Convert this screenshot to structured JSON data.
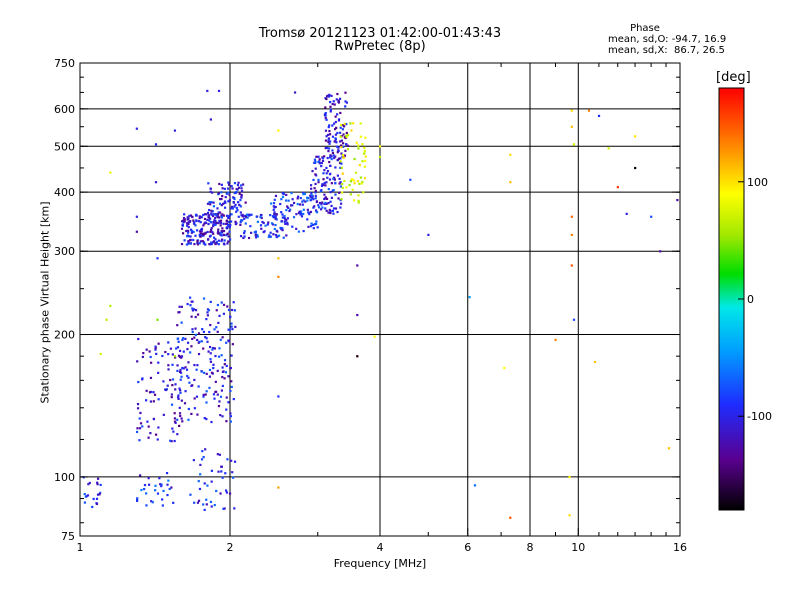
{
  "title": {
    "line1": "Tromsø 20121123 01:42:00-01:43:43",
    "line2": "RwPretec (8p)"
  },
  "stats": {
    "label": "Phase",
    "line_o": "mean, sd,O: -94.7, 16.9",
    "line_x": "mean, sd,X:  86.7, 26.5"
  },
  "colorbar": {
    "label": "[deg]",
    "range": [
      -180,
      180
    ],
    "ticks": [
      100,
      0,
      -100
    ]
  },
  "chart_data": {
    "type": "scatter",
    "title": "Tromsø 20121123 01:42:00-01:43:43",
    "subtitle": "RwPretec (8p)",
    "xlabel": "Frequency [MHz]",
    "ylabel": "Stationary phase Virtual Height [km]",
    "xscale": "log",
    "yscale": "log",
    "xlim": [
      1,
      16
    ],
    "ylim": [
      75,
      750
    ],
    "xticks": [
      1,
      2,
      4,
      6,
      8,
      10,
      16
    ],
    "yticks": [
      75,
      100,
      200,
      300,
      400,
      500,
      600,
      750
    ],
    "grid_x": [
      2,
      4,
      6,
      8,
      10
    ],
    "grid_y": [
      100,
      200,
      300,
      400,
      500,
      600
    ],
    "minor_x": [
      3,
      5,
      7,
      9,
      11,
      12,
      13,
      14,
      15
    ],
    "clusters": [
      {
        "fx": [
          1.0,
          1.1
        ],
        "hy": [
          85,
          102
        ],
        "phase": -105,
        "n": 20
      },
      {
        "fx": [
          1.3,
          1.55
        ],
        "hy": [
          85,
          102
        ],
        "phase": -100,
        "n": 30
      },
      {
        "fx": [
          1.65,
          2.05
        ],
        "hy": [
          85,
          115
        ],
        "phase": -105,
        "n": 45
      },
      {
        "fx": [
          1.3,
          1.6
        ],
        "hy": [
          118,
          200
        ],
        "phase": -115,
        "n": 90
      },
      {
        "fx": [
          1.55,
          2.05
        ],
        "hy": [
          130,
          240
        ],
        "phase": -110,
        "n": 200
      },
      {
        "fx": [
          1.6,
          2.0
        ],
        "hy": [
          310,
          360
        ],
        "phase": -115,
        "n": 200
      },
      {
        "fx": [
          1.8,
          2.15
        ],
        "hy": [
          340,
          420
        ],
        "phase": -110,
        "n": 120
      },
      {
        "fx": [
          2.1,
          2.6
        ],
        "hy": [
          320,
          360
        ],
        "phase": -105,
        "n": 80
      },
      {
        "fx": [
          2.4,
          3.0
        ],
        "hy": [
          330,
          400
        ],
        "phase": -100,
        "n": 100
      },
      {
        "fx": [
          2.9,
          3.35
        ],
        "hy": [
          360,
          480
        ],
        "phase": -110,
        "n": 120
      },
      {
        "fx": [
          3.1,
          3.45
        ],
        "hy": [
          470,
          650
        ],
        "phase": -120,
        "n": 100
      },
      {
        "fx": [
          3.3,
          3.75
        ],
        "hy": [
          380,
          560
        ],
        "phase": 75,
        "n": 60
      }
    ],
    "points": [
      [
        1.15,
        440,
        80
      ],
      [
        1.15,
        230,
        60
      ],
      [
        1.13,
        215,
        60
      ],
      [
        1.1,
        182,
        70
      ],
      [
        1.3,
        545,
        -110
      ],
      [
        1.42,
        505,
        -105
      ],
      [
        1.42,
        420,
        -120
      ],
      [
        1.3,
        330,
        -130
      ],
      [
        1.3,
        355,
        -110
      ],
      [
        1.43,
        290,
        -100
      ],
      [
        1.43,
        215,
        40
      ],
      [
        1.55,
        180,
        50
      ],
      [
        1.55,
        540,
        -110
      ],
      [
        1.8,
        655,
        -110
      ],
      [
        1.9,
        655,
        -110
      ],
      [
        1.83,
        570,
        -120
      ],
      [
        2.5,
        540,
        90
      ],
      [
        2.7,
        650,
        -120
      ],
      [
        2.5,
        290,
        110
      ],
      [
        2.5,
        265,
        130
      ],
      [
        2.5,
        148,
        -100
      ],
      [
        2.5,
        95,
        120
      ],
      [
        3.6,
        280,
        -130
      ],
      [
        3.6,
        220,
        -130
      ],
      [
        3.6,
        180,
        130
      ],
      [
        3.6,
        180,
        -170
      ],
      [
        3.9,
        198,
        90
      ],
      [
        4.0,
        500,
        90
      ],
      [
        4.0,
        475,
        60
      ],
      [
        4.6,
        425,
        -90
      ],
      [
        5.0,
        325,
        -110
      ],
      [
        6.05,
        240,
        -60
      ],
      [
        6.2,
        96,
        -80
      ],
      [
        7.1,
        170,
        90
      ],
      [
        7.3,
        480,
        100
      ],
      [
        7.3,
        420,
        110
      ],
      [
        7.3,
        82,
        150
      ],
      [
        9.0,
        195,
        130
      ],
      [
        9.7,
        595,
        100
      ],
      [
        9.7,
        550,
        110
      ],
      [
        9.8,
        505,
        70
      ],
      [
        9.7,
        355,
        140
      ],
      [
        9.7,
        325,
        130
      ],
      [
        9.7,
        280,
        150
      ],
      [
        9.8,
        215,
        -90
      ],
      [
        9.6,
        100,
        90
      ],
      [
        9.6,
        83,
        100
      ],
      [
        10.5,
        595,
        130
      ],
      [
        10.8,
        175,
        110
      ],
      [
        11.0,
        580,
        -100
      ],
      [
        11.5,
        495,
        70
      ],
      [
        12.0,
        410,
        160
      ],
      [
        12.5,
        360,
        -110
      ],
      [
        13.0,
        525,
        100
      ],
      [
        13.0,
        450,
        -180
      ],
      [
        14.0,
        355,
        -90
      ],
      [
        14.6,
        300,
        -130
      ],
      [
        15.2,
        115,
        110
      ],
      [
        15.8,
        385,
        -130
      ]
    ]
  }
}
